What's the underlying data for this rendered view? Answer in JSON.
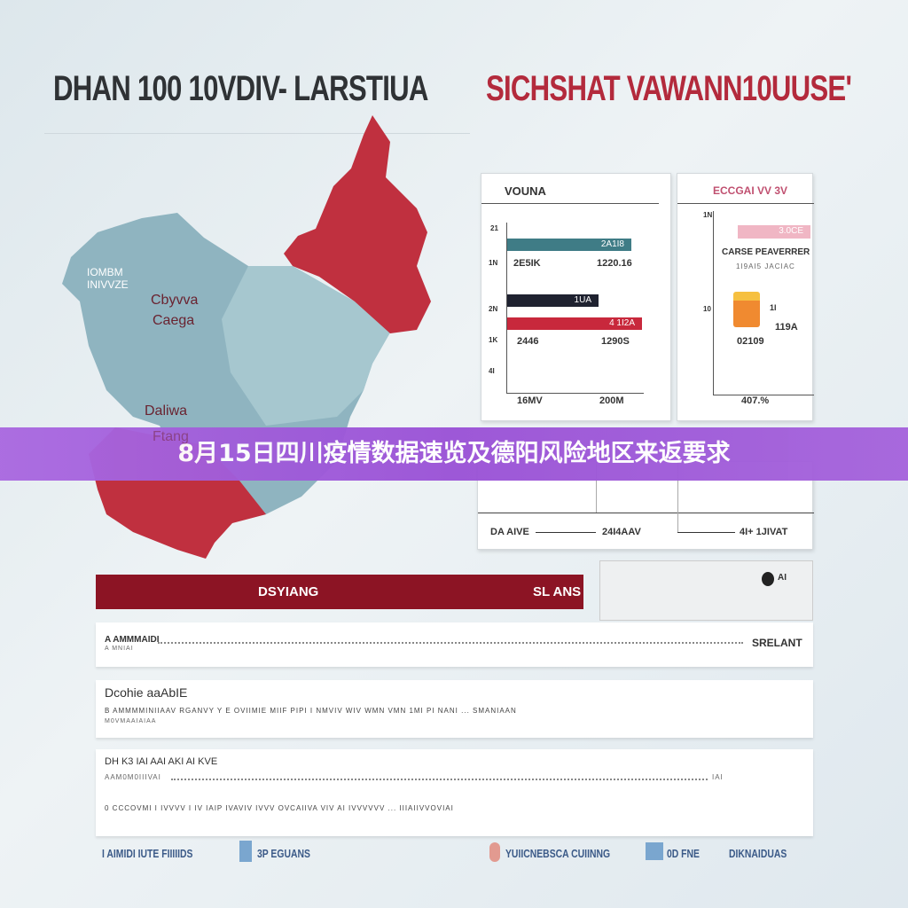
{
  "header": {
    "title_dark": "DHAN 100 10VDIV- LARSTIUA",
    "title_red": "SICHSHAT VAWANN10UUSE'"
  },
  "map": {
    "labels": [
      "IOMBM",
      "INIVVZE",
      "Cbyvva",
      "Caega",
      "Daliwa",
      "Ftang"
    ],
    "colors": {
      "risk": "#c0303f",
      "base": "#8fb4c0"
    }
  },
  "chart_left": {
    "title": "VOUNA",
    "y_labels": [
      "21",
      "1N",
      "2N",
      "1K",
      "4I"
    ],
    "bars": [
      {
        "label": "2A1I8",
        "color": "#3f7c86"
      },
      {
        "label": "1UA",
        "color": "#1f2230"
      },
      {
        "label": "4 1I2A",
        "color": "#c8283c"
      }
    ],
    "values": [
      "2E5IK",
      "1220.16",
      "2446",
      "1290S"
    ],
    "x_labels": [
      "16MV",
      "200M"
    ]
  },
  "chart_right": {
    "title": "ECCGAI VV 3V",
    "top_label": "3.0CE",
    "subtitle": "CARSE PEAVERRER",
    "sub2": "1I9AI5 JACIAC",
    "y_labels": [
      "1N",
      "10"
    ],
    "values": [
      "1I",
      "119A",
      "02109"
    ],
    "x_label": "407.%",
    "colors": {
      "pink": "#f0b6c4",
      "orange": "#f08a30"
    }
  },
  "banner": {
    "text": "8月15日四川疫情数据速览及德阳风险地区来返要求"
  },
  "timeline": {
    "items": [
      "DA AIVE",
      "24I4AAV",
      "4I+ 1JIVAT"
    ]
  },
  "red_bar": {
    "left": "DSYIANG",
    "right": "SL ANS",
    "color": "#8c1424"
  },
  "side_box": {
    "label": "AI"
  },
  "rows": [
    {
      "title": "A AMMMAIDI",
      "sub": "A MNIAI",
      "right": "SRELANT"
    },
    {
      "title": "Dcohie aaAbIE",
      "body": "B AMMMMINIIAAV RGANVY Y E OVIIMIE MIIF PIPI I NMVIV WIV WMN VMN 1MI PI NANI ... SMANIAAN",
      "sub": "M0VMAAIAIAA"
    },
    {
      "title": "DH K3 IAI AAI AKI AI KVE",
      "sub": "AAM0M0IIIVAI",
      "right": "IAI",
      "body": "0 CCCOVMI I IVVVV I IV IAIP IVAVIV IVVV OVCAIIVA VIV AI IVVVVVV ... IIIAIIVVOVIAI"
    }
  ],
  "footer": [
    "I AIMIDI IUTE FIIIIIDS",
    "3P EGUANS",
    "YUIICNEBSCA CUIINNG",
    "0D FNE",
    "DIKNAIDUAS"
  ]
}
